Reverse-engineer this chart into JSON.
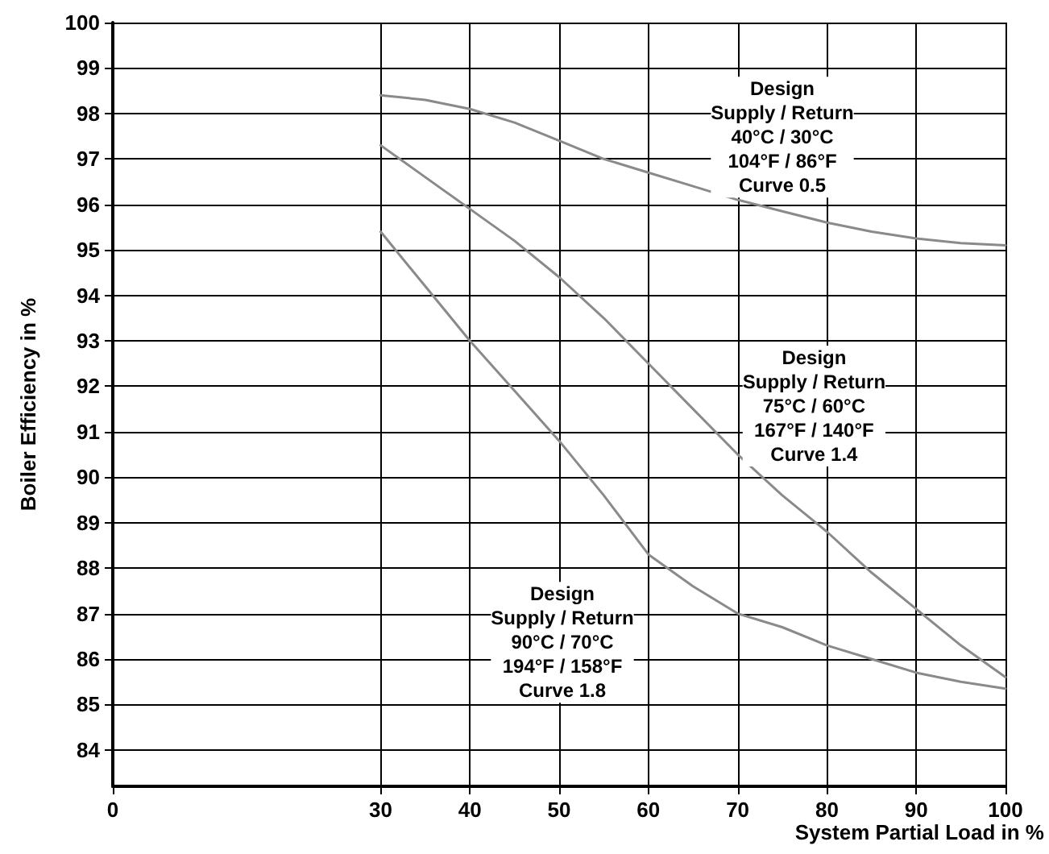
{
  "chart_data": {
    "type": "line",
    "xlabel": "System Partial Load in %",
    "ylabel": "Boiler Efficiency in %",
    "xlim": [
      0,
      100
    ],
    "xticks": [
      0,
      30,
      40,
      50,
      60,
      70,
      80,
      90,
      100
    ],
    "ylim": [
      83.2,
      100
    ],
    "yticks": [
      84,
      85,
      86,
      87,
      88,
      89,
      90,
      91,
      92,
      93,
      94,
      95,
      96,
      97,
      98,
      99,
      100
    ],
    "grid": true,
    "marker": "none",
    "line_style": "solid",
    "x": [
      30,
      35,
      40,
      45,
      50,
      55,
      60,
      65,
      70,
      75,
      80,
      85,
      90,
      95,
      100
    ],
    "series": [
      {
        "name": "Design\nSupply / Return\n40°C / 30°C\n104°F / 86°F\nCurve 0.5",
        "color": "#8a8a8a",
        "values": [
          98.4,
          98.3,
          98.1,
          97.8,
          97.4,
          97.0,
          96.7,
          96.4,
          96.1,
          95.85,
          95.6,
          95.4,
          95.25,
          95.15,
          95.1
        ]
      },
      {
        "name": "Design\nSupply / Return\n75°C / 60°C\n167°F / 140°F\nCurve 1.4",
        "color": "#8a8a8a",
        "values": [
          97.3,
          96.6,
          95.9,
          95.2,
          94.4,
          93.5,
          92.5,
          91.5,
          90.5,
          89.6,
          88.8,
          87.9,
          87.1,
          86.3,
          85.6
        ]
      },
      {
        "name": "Design\nSupply / Return\n90°C / 70°C\n194°F / 158°F\nCurve 1.8",
        "color": "#8a8a8a",
        "values": [
          95.4,
          94.2,
          93.0,
          91.9,
          90.8,
          89.6,
          88.3,
          87.6,
          87.0,
          86.7,
          86.3,
          86.0,
          85.7,
          85.5,
          85.35
        ]
      }
    ],
    "legend": false
  }
}
